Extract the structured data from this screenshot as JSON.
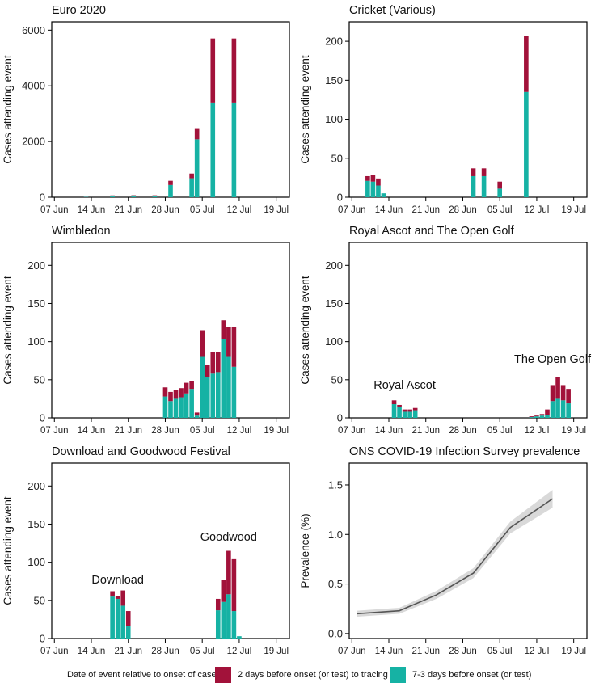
{
  "colors": {
    "late": "#a2123a",
    "early": "#16b2a4",
    "line": "#555555",
    "band": "#d9d9d9"
  },
  "legend": {
    "title": "Date of event relative to onset of case",
    "late_label": "2 days before onset (or test) to tracing",
    "early_label": "7-3 days before onset (or test)"
  },
  "chart_data": [
    {
      "type": "bar",
      "stacked": true,
      "title": "Euro 2020",
      "ylabel": "Cases attending event",
      "ylim": [
        0,
        6300
      ],
      "yticks": [
        0,
        2000,
        4000,
        6000
      ],
      "x_start": "2021-06-07",
      "x_end": "2021-07-21",
      "xticks": [
        "07 Jun",
        "14 Jun",
        "21 Jun",
        "28 Jun",
        "05 Jul",
        "12 Jul",
        "19 Jul"
      ],
      "series_names": [
        "7-3 days before onset (or test)",
        "2 days before onset (or test) to tracing"
      ],
      "bars": [
        {
          "date": "2021-06-13",
          "early": 15,
          "late": 5
        },
        {
          "date": "2021-06-18",
          "early": 55,
          "late": 10
        },
        {
          "date": "2021-06-22",
          "early": 65,
          "late": 10
        },
        {
          "date": "2021-06-26",
          "early": 60,
          "late": 10
        },
        {
          "date": "2021-06-29",
          "early": 440,
          "late": 150
        },
        {
          "date": "2021-07-03",
          "early": 680,
          "late": 170
        },
        {
          "date": "2021-07-04",
          "early": 2080,
          "late": 400
        },
        {
          "date": "2021-07-07",
          "early": 3400,
          "late": 2300
        },
        {
          "date": "2021-07-11",
          "early": 3400,
          "late": 2300
        }
      ]
    },
    {
      "type": "bar",
      "stacked": true,
      "title": "Cricket (Various)",
      "ylabel": "Cases attending event",
      "ylim": [
        0,
        225
      ],
      "yticks": [
        0,
        50,
        100,
        150,
        200
      ],
      "x_start": "2021-06-07",
      "x_end": "2021-07-21",
      "xticks": [
        "07 Jun",
        "14 Jun",
        "21 Jun",
        "28 Jun",
        "05 Jul",
        "12 Jul",
        "19 Jul"
      ],
      "series_names": [
        "7-3 days before onset (or test)",
        "2 days before onset (or test) to tracing"
      ],
      "bars": [
        {
          "date": "2021-06-10",
          "early": 21,
          "late": 6
        },
        {
          "date": "2021-06-11",
          "early": 20,
          "late": 8
        },
        {
          "date": "2021-06-12",
          "early": 15,
          "late": 9
        },
        {
          "date": "2021-06-13",
          "early": 5,
          "late": 0
        },
        {
          "date": "2021-06-30",
          "early": 27,
          "late": 10
        },
        {
          "date": "2021-07-02",
          "early": 27,
          "late": 10
        },
        {
          "date": "2021-07-05",
          "early": 11,
          "late": 9
        },
        {
          "date": "2021-07-10",
          "early": 135,
          "late": 72
        }
      ]
    },
    {
      "type": "bar",
      "stacked": true,
      "title": "Wimbledon",
      "ylabel": "Cases attending event",
      "ylim": [
        0,
        230
      ],
      "yticks": [
        0,
        50,
        100,
        150,
        200
      ],
      "x_start": "2021-06-07",
      "x_end": "2021-07-21",
      "xticks": [
        "07 Jun",
        "14 Jun",
        "21 Jun",
        "28 Jun",
        "05 Jul",
        "12 Jul",
        "19 Jul"
      ],
      "series_names": [
        "7-3 days before onset (or test)",
        "2 days before onset (or test) to tracing"
      ],
      "bars": [
        {
          "date": "2021-06-28",
          "early": 28,
          "late": 12
        },
        {
          "date": "2021-06-29",
          "early": 22,
          "late": 12
        },
        {
          "date": "2021-06-30",
          "early": 25,
          "late": 12
        },
        {
          "date": "2021-07-01",
          "early": 27,
          "late": 12
        },
        {
          "date": "2021-07-02",
          "early": 32,
          "late": 14
        },
        {
          "date": "2021-07-03",
          "early": 38,
          "late": 10
        },
        {
          "date": "2021-07-04",
          "early": 3,
          "late": 4
        },
        {
          "date": "2021-07-05",
          "early": 80,
          "late": 35
        },
        {
          "date": "2021-07-06",
          "early": 53,
          "late": 16
        },
        {
          "date": "2021-07-07",
          "early": 58,
          "late": 28
        },
        {
          "date": "2021-07-08",
          "early": 60,
          "late": 26
        },
        {
          "date": "2021-07-09",
          "early": 103,
          "late": 25
        },
        {
          "date": "2021-07-10",
          "early": 80,
          "late": 39
        },
        {
          "date": "2021-07-11",
          "early": 67,
          "late": 52
        }
      ]
    },
    {
      "type": "bar",
      "stacked": true,
      "title": "Royal Ascot and The Open Golf",
      "ylabel": "Cases attending event",
      "ylim": [
        0,
        230
      ],
      "yticks": [
        0,
        50,
        100,
        150,
        200
      ],
      "x_start": "2021-06-07",
      "x_end": "2021-07-21",
      "xticks": [
        "07 Jun",
        "14 Jun",
        "21 Jun",
        "28 Jun",
        "05 Jul",
        "12 Jul",
        "19 Jul"
      ],
      "series_names": [
        "7-3 days before onset (or test)",
        "2 days before onset (or test) to tracing"
      ],
      "annotations": [
        {
          "text": "Royal Ascot",
          "date": "2021-06-17",
          "value": 38
        },
        {
          "text": "The Open Golf",
          "date": "2021-07-15",
          "value": 72
        }
      ],
      "bars": [
        {
          "date": "2021-06-15",
          "early": 18,
          "late": 5
        },
        {
          "date": "2021-06-16",
          "early": 14,
          "late": 3
        },
        {
          "date": "2021-06-17",
          "early": 8,
          "late": 3
        },
        {
          "date": "2021-06-18",
          "early": 8,
          "late": 3
        },
        {
          "date": "2021-06-19",
          "early": 10,
          "late": 3
        },
        {
          "date": "2021-07-11",
          "early": 1,
          "late": 1
        },
        {
          "date": "2021-07-12",
          "early": 2,
          "late": 1
        },
        {
          "date": "2021-07-13",
          "early": 3,
          "late": 2
        },
        {
          "date": "2021-07-14",
          "early": 4,
          "late": 7
        },
        {
          "date": "2021-07-15",
          "early": 22,
          "late": 21
        },
        {
          "date": "2021-07-16",
          "early": 25,
          "late": 28
        },
        {
          "date": "2021-07-17",
          "early": 23,
          "late": 20
        },
        {
          "date": "2021-07-18",
          "early": 19,
          "late": 19
        }
      ]
    },
    {
      "type": "bar",
      "stacked": true,
      "title": "Download and Goodwood Festival",
      "ylabel": "Cases attending event",
      "ylim": [
        0,
        230
      ],
      "yticks": [
        0,
        50,
        100,
        150,
        200
      ],
      "x_start": "2021-06-07",
      "x_end": "2021-07-21",
      "xticks": [
        "07 Jun",
        "14 Jun",
        "21 Jun",
        "28 Jun",
        "05 Jul",
        "12 Jul",
        "19 Jul"
      ],
      "series_names": [
        "7-3 days before onset (or test)",
        "2 days before onset (or test) to tracing"
      ],
      "annotations": [
        {
          "text": "Download",
          "date": "2021-06-19",
          "value": 72
        },
        {
          "text": "Goodwood",
          "date": "2021-07-10",
          "value": 128
        }
      ],
      "bars": [
        {
          "date": "2021-06-18",
          "early": 55,
          "late": 7
        },
        {
          "date": "2021-06-19",
          "early": 52,
          "late": 4
        },
        {
          "date": "2021-06-20",
          "early": 43,
          "late": 20
        },
        {
          "date": "2021-06-21",
          "early": 16,
          "late": 20
        },
        {
          "date": "2021-07-08",
          "early": 37,
          "late": 15
        },
        {
          "date": "2021-07-09",
          "early": 48,
          "late": 29
        },
        {
          "date": "2021-07-10",
          "early": 58,
          "late": 57
        },
        {
          "date": "2021-07-11",
          "early": 36,
          "late": 68
        },
        {
          "date": "2021-07-12",
          "early": 3,
          "late": 0
        }
      ]
    },
    {
      "type": "line",
      "title": "ONS COVID-19 Infection Survey prevalence",
      "ylabel": "Prevalence (%)",
      "ylim": [
        -0.05,
        1.72
      ],
      "yticks": [
        0.0,
        0.5,
        1.0,
        1.5
      ],
      "ytick_labels": [
        "0.0",
        "0.5",
        "1.0",
        "1.5"
      ],
      "x_start": "2021-06-07",
      "x_end": "2021-07-21",
      "xticks": [
        "07 Jun",
        "14 Jun",
        "21 Jun",
        "28 Jun",
        "05 Jul",
        "12 Jul",
        "19 Jul"
      ],
      "points": [
        {
          "date": "2021-06-08",
          "y": 0.2,
          "lo": 0.17,
          "hi": 0.23
        },
        {
          "date": "2021-06-16",
          "y": 0.23,
          "lo": 0.2,
          "hi": 0.26
        },
        {
          "date": "2021-06-23",
          "y": 0.39,
          "lo": 0.35,
          "hi": 0.43
        },
        {
          "date": "2021-06-30",
          "y": 0.61,
          "lo": 0.56,
          "hi": 0.66
        },
        {
          "date": "2021-07-07",
          "y": 1.07,
          "lo": 1.01,
          "hi": 1.13
        },
        {
          "date": "2021-07-15",
          "y": 1.36,
          "lo": 1.27,
          "hi": 1.45
        }
      ]
    }
  ]
}
